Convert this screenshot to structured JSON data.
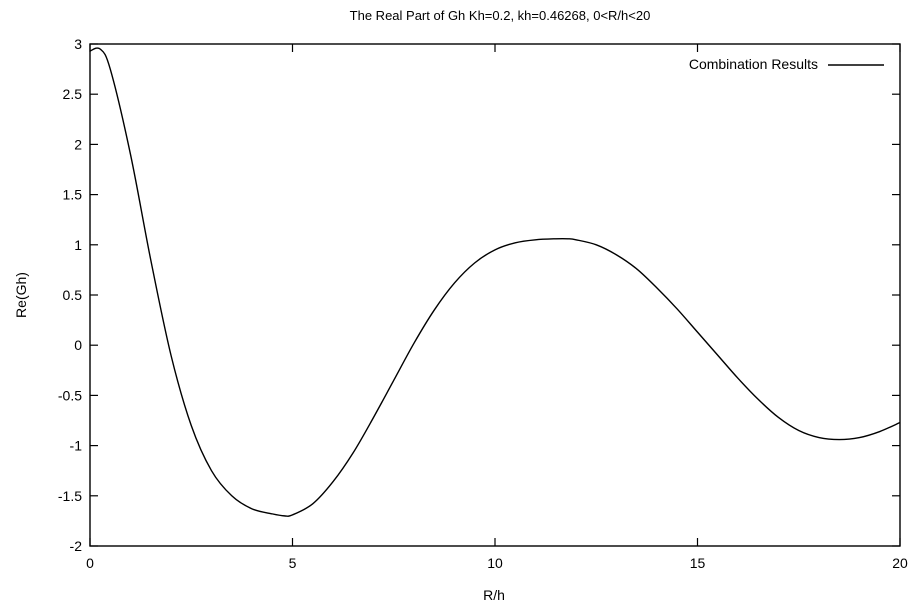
{
  "chart_data": {
    "type": "line",
    "title": "The Real Part of Gh  Kh=0.2, kh=0.46268, 0<R/h<20",
    "xlabel": "R/h",
    "ylabel": "Re(Gh)",
    "xlim": [
      0,
      20
    ],
    "ylim": [
      -2,
      3
    ],
    "xticks": [
      0,
      5,
      10,
      15,
      20
    ],
    "xtick_labels": [
      "0",
      "5",
      "10",
      "15",
      "20"
    ],
    "yticks": [
      3,
      2.5,
      2,
      1.5,
      1,
      0.5,
      0,
      -0.5,
      -1,
      -1.5,
      -2
    ],
    "ytick_labels": [
      "3",
      "2.5",
      "2",
      "1.5",
      "1",
      "0.5",
      "0",
      "-0.5",
      "-1",
      "-1.5",
      "-2"
    ],
    "grid": false,
    "legend_position": "top-right",
    "series": [
      {
        "name": "Combination Results",
        "color": "#000000",
        "x": [
          0,
          0.25,
          0.5,
          1,
          1.5,
          2,
          2.5,
          3,
          3.5,
          4,
          4.5,
          4.8,
          5,
          5.5,
          6,
          6.5,
          7,
          7.5,
          8,
          8.5,
          9,
          9.5,
          10,
          10.5,
          11,
          11.5,
          11.8,
          12,
          12.5,
          13,
          13.5,
          14,
          14.5,
          15,
          15.5,
          16,
          16.5,
          17,
          17.5,
          18,
          18.5,
          19,
          19.5,
          20
        ],
        "y": [
          2.93,
          2.95,
          2.75,
          1.9,
          0.85,
          -0.1,
          -0.8,
          -1.25,
          -1.5,
          -1.63,
          -1.68,
          -1.7,
          -1.69,
          -1.58,
          -1.36,
          -1.07,
          -0.72,
          -0.35,
          0.02,
          0.35,
          0.62,
          0.82,
          0.95,
          1.02,
          1.05,
          1.06,
          1.06,
          1.05,
          1.0,
          0.9,
          0.76,
          0.57,
          0.36,
          0.13,
          -0.1,
          -0.33,
          -0.54,
          -0.72,
          -0.85,
          -0.92,
          -0.94,
          -0.92,
          -0.86,
          -0.77
        ]
      }
    ]
  }
}
